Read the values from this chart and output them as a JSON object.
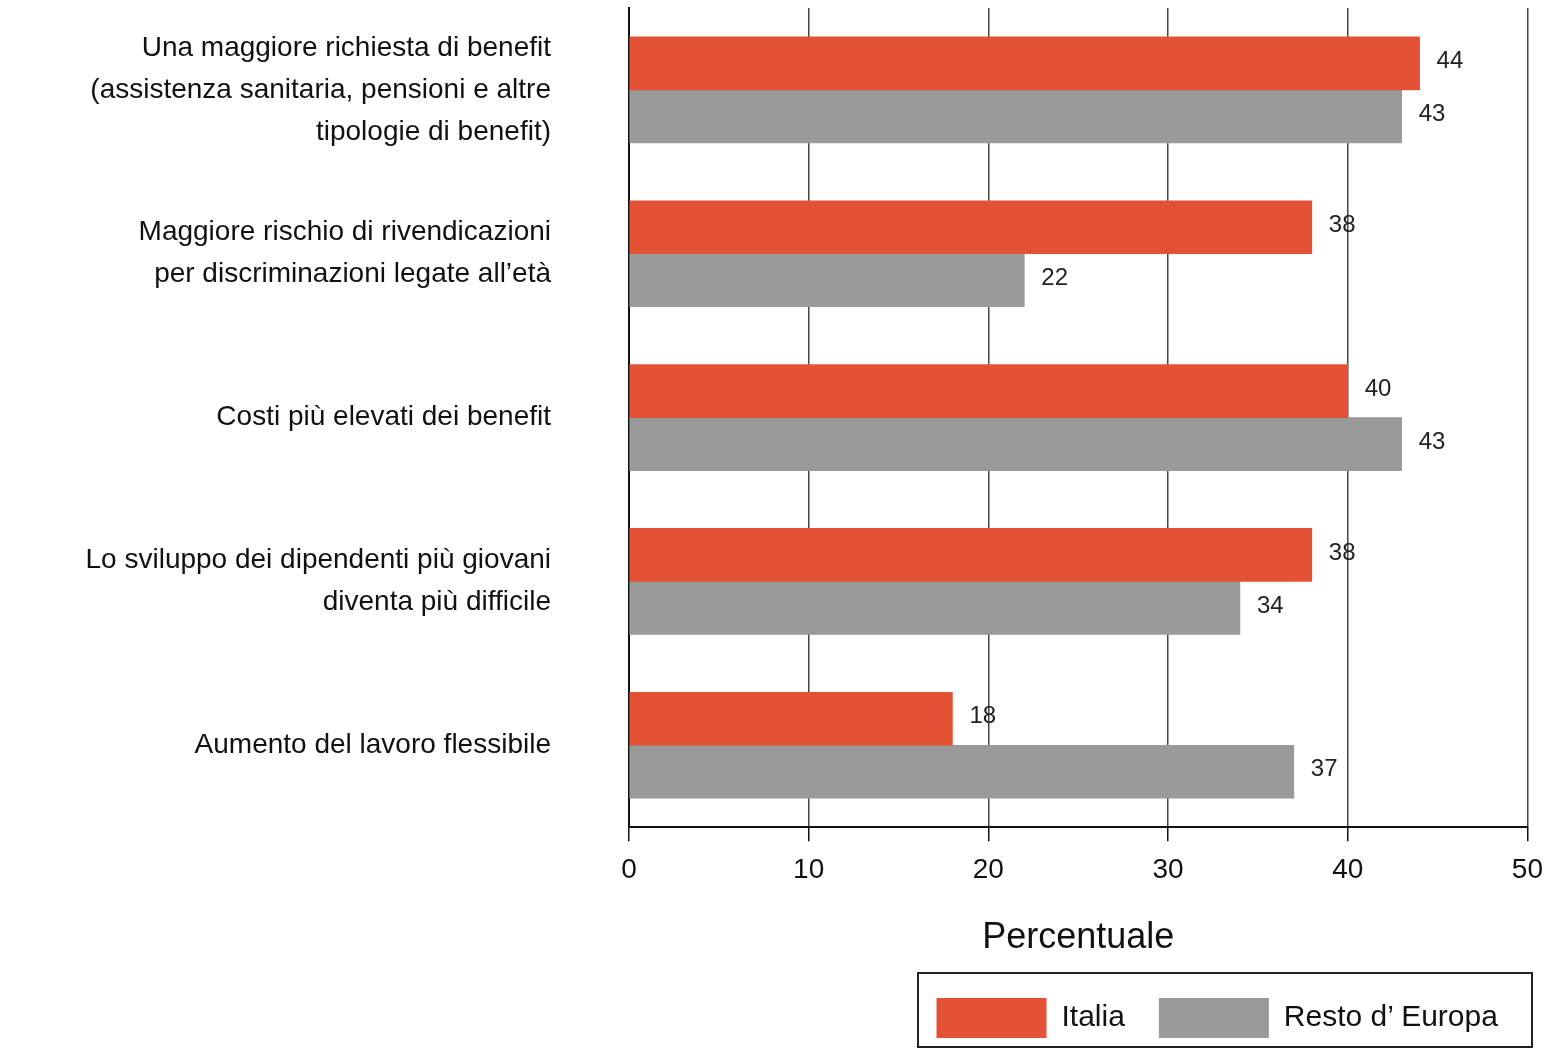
{
  "chart_data": {
    "type": "bar",
    "orientation": "horizontal",
    "xlabel": "Percentuale",
    "categories": [
      "Una maggiore richiesta di benefit\n(assistenza sanitaria, pensioni e altre\ntipologie di benefit)",
      "Maggiore rischio di rivendicazioni\nper discriminazioni legate all’età",
      "Costi più elevati dei benefit",
      "Lo sviluppo dei dipendenti più giovani\ndiventa più difficile",
      "Aumento del lavoro flessibile"
    ],
    "series": [
      {
        "name": "Italia",
        "color": "#e45236",
        "values": [
          44,
          38,
          40,
          38,
          18
        ]
      },
      {
        "name": "Resto d’ Europa",
        "color": "#9a9a9a",
        "values": [
          43,
          22,
          43,
          34,
          37
        ]
      }
    ],
    "xlim": [
      0,
      50
    ],
    "xticks": [
      0,
      10,
      20,
      30,
      40,
      50
    ],
    "grid": "x",
    "legend": "bottom",
    "data_labels": true
  }
}
